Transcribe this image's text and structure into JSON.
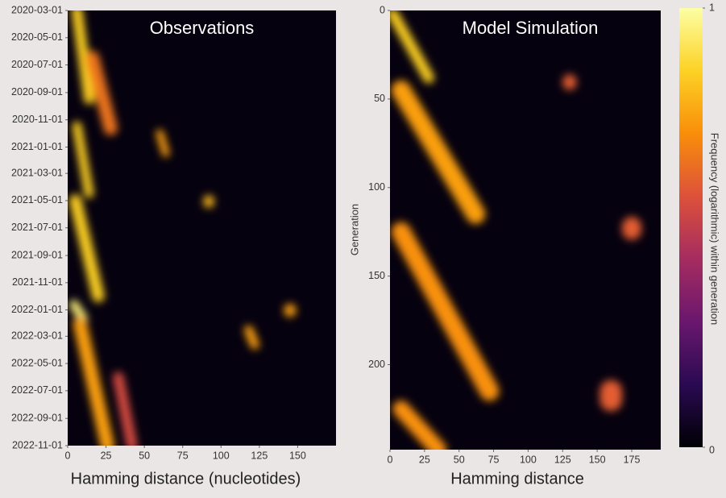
{
  "chart_data": [
    {
      "type": "heatmap",
      "title": "Observations",
      "x_label": "Hamming distance (nucleotides)",
      "xlim": [
        0,
        175
      ],
      "xticks": [
        0,
        25,
        50,
        75,
        100,
        125,
        150
      ],
      "ylim": [
        "2020-03-01",
        "2022-11-01"
      ],
      "yticks": [
        "2020-03-01",
        "2020-05-01",
        "2020-07-01",
        "2020-09-01",
        "2020-11-01",
        "2021-01-01",
        "2021-03-01",
        "2021-05-01",
        "2021-07-01",
        "2021-09-01",
        "2021-11-01",
        "2022-01-01",
        "2022-03-01",
        "2022-05-01",
        "2022-07-01",
        "2022-09-01",
        "2022-11-01"
      ],
      "features": [
        {
          "x": [
            6,
            14
          ],
          "y": [
            "2020-03-01",
            "2020-09-15"
          ],
          "width": 7,
          "intensity": 0.85
        },
        {
          "x": [
            16,
            28
          ],
          "y": [
            "2020-06-15",
            "2020-11-20"
          ],
          "width": 9,
          "intensity": 0.65
        },
        {
          "x": [
            6,
            14
          ],
          "y": [
            "2020-11-15",
            "2021-04-15"
          ],
          "width": 6,
          "intensity": 0.85
        },
        {
          "x": [
            5,
            20
          ],
          "y": [
            "2021-05-01",
            "2021-12-01"
          ],
          "width": 8,
          "intensity": 0.85
        },
        {
          "x": [
            4,
            10
          ],
          "y": [
            "2021-12-20",
            "2022-01-20"
          ],
          "width": 6,
          "intensity": 0.95
        },
        {
          "x": [
            8,
            26
          ],
          "y": [
            "2022-02-01",
            "2022-11-01"
          ],
          "width": 9,
          "intensity": 0.75
        },
        {
          "x": [
            33,
            42
          ],
          "y": [
            "2022-06-01",
            "2022-11-01"
          ],
          "width": 7,
          "intensity": 0.55
        },
        {
          "x": [
            60,
            64
          ],
          "y": [
            "2020-12-01",
            "2021-01-15"
          ],
          "width": 5,
          "intensity": 0.75
        },
        {
          "x": [
            92,
            92
          ],
          "y": [
            "2021-05-01",
            "2021-05-05"
          ],
          "width": 7,
          "intensity": 0.8
        },
        {
          "x": [
            145,
            145
          ],
          "y": [
            "2022-01-01",
            "2022-01-03"
          ],
          "width": 8,
          "intensity": 0.75
        },
        {
          "x": [
            118,
            122
          ],
          "y": [
            "2022-02-15",
            "2022-03-20"
          ],
          "width": 6,
          "intensity": 0.75
        }
      ]
    },
    {
      "type": "heatmap",
      "title": "Model Simulation",
      "x_label": "Hamming distance",
      "y_label": "Generation",
      "xlim": [
        0,
        196
      ],
      "xticks": [
        0,
        25,
        50,
        75,
        100,
        125,
        150,
        175
      ],
      "ylim": [
        0,
        248
      ],
      "yticks": [
        0,
        50,
        100,
        150,
        200
      ],
      "features": [
        {
          "x": [
            2,
            28
          ],
          "y": [
            2,
            38
          ],
          "width": 8,
          "intensity": 0.85
        },
        {
          "x": [
            8,
            62
          ],
          "y": [
            45,
            115
          ],
          "width": 14,
          "intensity": 0.75
        },
        {
          "x": [
            8,
            72
          ],
          "y": [
            125,
            215
          ],
          "width": 14,
          "intensity": 0.72
        },
        {
          "x": [
            8,
            35
          ],
          "y": [
            225,
            248
          ],
          "width": 12,
          "intensity": 0.72
        },
        {
          "x": [
            130,
            130
          ],
          "y": [
            40,
            41
          ],
          "width": 10,
          "intensity": 0.6
        },
        {
          "x": [
            175,
            175
          ],
          "y": [
            122,
            124
          ],
          "width": 14,
          "intensity": 0.6
        },
        {
          "x": [
            160,
            160
          ],
          "y": [
            215,
            220
          ],
          "width": 16,
          "intensity": 0.6
        }
      ]
    },
    {
      "type": "colorbar",
      "label": "Frequency (logarithmic) within generation",
      "ylim": [
        0,
        1
      ],
      "yticks": [
        0,
        1
      ],
      "colormap": [
        "#000004",
        "#2a0a52",
        "#6a176e",
        "#a52c60",
        "#dd513a",
        "#f98e09",
        "#fcd225",
        "#fcffa4"
      ]
    }
  ]
}
